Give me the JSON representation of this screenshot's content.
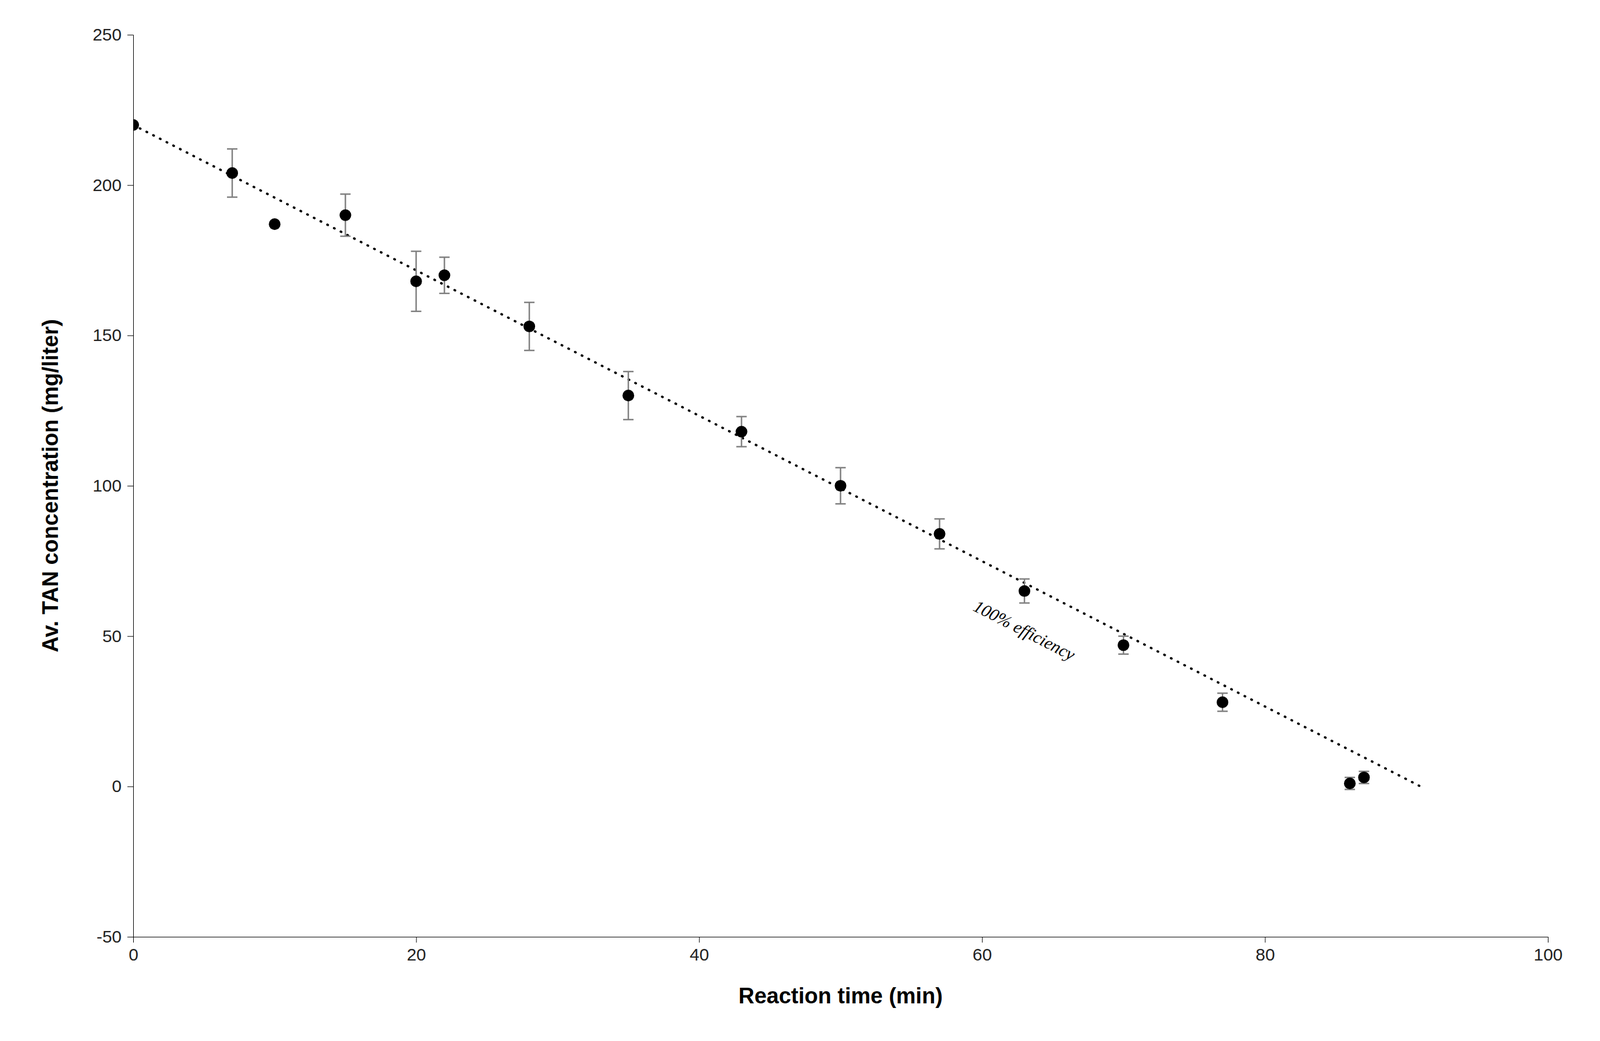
{
  "chart_data": {
    "type": "scatter",
    "xlabel": "Reaction time (min)",
    "ylabel": "Av. TAN concentration (mg/liter)",
    "xlim": [
      0,
      100
    ],
    "ylim": [
      -50,
      250
    ],
    "xticks": [
      0,
      20,
      40,
      60,
      80,
      100
    ],
    "yticks": [
      -50,
      0,
      50,
      100,
      150,
      200,
      250
    ],
    "grid": false,
    "series": [
      {
        "type": "scatter",
        "marker": "circle",
        "color": "black",
        "x": [
          0,
          7,
          10,
          15,
          20,
          22,
          28,
          35,
          43,
          50,
          57,
          63,
          70,
          77,
          86,
          87
        ],
        "values": [
          220,
          204,
          187,
          190,
          168,
          170,
          153,
          130,
          118,
          100,
          84,
          65,
          47,
          28,
          1,
          3
        ],
        "errors": [
          0,
          8,
          0,
          7,
          10,
          6,
          8,
          8,
          5,
          6,
          5,
          4,
          3,
          3,
          2,
          2
        ]
      },
      {
        "type": "line",
        "line_style": "dotted",
        "color": "black",
        "x": [
          0,
          91
        ],
        "values": [
          220,
          0
        ]
      }
    ],
    "annotations": [
      {
        "text": "100% efficiency",
        "x": 63,
        "y": 52
      }
    ]
  }
}
